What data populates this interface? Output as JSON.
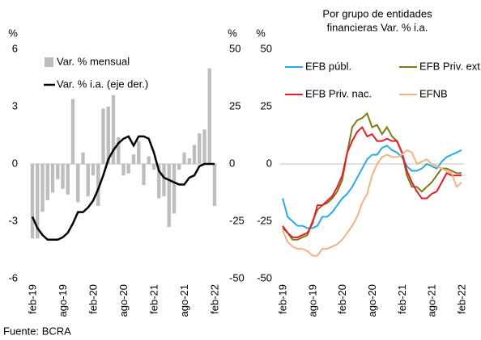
{
  "chart_data": [
    {
      "type": "combo",
      "categories": [
        "feb-19",
        null,
        null,
        null,
        null,
        null,
        "ago-19",
        null,
        null,
        null,
        null,
        null,
        "feb-20",
        null,
        null,
        null,
        null,
        null,
        "ago-20",
        null,
        null,
        null,
        null,
        null,
        "feb-21",
        null,
        null,
        null,
        null,
        null,
        "ago-21",
        null,
        null,
        null,
        null,
        null,
        "feb-22"
      ],
      "y_unit": "%",
      "y2_unit": "%",
      "ylim": [
        -6,
        6
      ],
      "yticks": [
        -6,
        -3,
        0,
        3,
        6
      ],
      "y2lim": [
        -50,
        50
      ],
      "y2ticks": [
        -50,
        -25,
        0,
        25,
        50
      ],
      "legend": "top-left",
      "series": [
        {
          "name": "Var. % mensual",
          "type": "bar",
          "color": "#bdbdbd",
          "values": [
            -3.9,
            -3.9,
            -2.5,
            -1.9,
            -1.5,
            -0.8,
            -1.3,
            -1.6,
            3.4,
            -2.0,
            0.6,
            -1.7,
            -0.6,
            -2.2,
            2.9,
            3.0,
            3.6,
            1.4,
            -0.6,
            -0.5,
            0.5,
            1.2,
            -1.1,
            0.4,
            -0.3,
            -1.8,
            -1.7,
            -3.3,
            -2.6,
            -0.3,
            0.6,
            0.3,
            1.0,
            1.6,
            1.8,
            5.0,
            -2.2
          ]
        },
        {
          "name": "Var. % i.a. (eje der.)",
          "type": "line",
          "axis": "y2",
          "color": "#000000",
          "values": [
            -23,
            -28,
            -31,
            -33,
            -33,
            -33,
            -32,
            -30,
            -26,
            -21,
            -21,
            -19,
            -16,
            -11,
            -5,
            2,
            6,
            9,
            11,
            12,
            8,
            12,
            12,
            11,
            5,
            -3,
            -6,
            -7,
            -8,
            -9,
            -9,
            -6,
            -5,
            -1,
            0,
            0,
            0
          ]
        }
      ]
    },
    {
      "type": "line",
      "title_lines": [
        "Por grupo de entidades",
        "financieras Var. % i.a."
      ],
      "categories": [
        "feb-19",
        null,
        null,
        null,
        null,
        null,
        "ago-19",
        null,
        null,
        null,
        null,
        null,
        "feb-20",
        null,
        null,
        null,
        null,
        null,
        "ago-20",
        null,
        null,
        null,
        null,
        null,
        "feb-21",
        null,
        null,
        null,
        null,
        null,
        "ago-21",
        null,
        null,
        null,
        null,
        null,
        "feb-22"
      ],
      "y_unit": "%",
      "ylim": [
        -50,
        50
      ],
      "yticks": [
        -50,
        -25,
        0,
        25,
        50
      ],
      "legend": "top",
      "series": [
        {
          "name": "EFB públ.",
          "color": "#29abe2",
          "values": [
            -15,
            -23,
            -25,
            -27,
            -27,
            -28,
            -28,
            -27,
            -23,
            -23,
            -21,
            -18,
            -15,
            -13,
            -10,
            -6,
            -2,
            2,
            4,
            4,
            7,
            8,
            6,
            5,
            3,
            -1,
            -3,
            -3,
            -2,
            0,
            -1,
            -2,
            1,
            3,
            4,
            5,
            6
          ]
        },
        {
          "name": "EFB Priv. ext.",
          "color": "#7a7a1a",
          "values": [
            -28,
            -30,
            -33,
            -33,
            -32,
            -31,
            -25,
            -20,
            -18,
            -17,
            -15,
            -12,
            -7,
            5,
            16,
            19,
            20,
            22,
            16,
            17,
            13,
            16,
            12,
            10,
            5,
            -5,
            -10,
            -10,
            -12,
            -10,
            -8,
            -5,
            -2,
            -2,
            -3,
            -4,
            -4
          ]
        },
        {
          "name": "EFB Priv. nac.",
          "color": "#e41e26",
          "values": [
            -27,
            -30,
            -32,
            -32,
            -31,
            -30,
            -26,
            -18,
            -18,
            -16,
            -14,
            -10,
            -5,
            5,
            10,
            14,
            16,
            12,
            13,
            10,
            10,
            11,
            10,
            10,
            5,
            -3,
            -8,
            -12,
            -15,
            -15,
            -13,
            -12,
            -8,
            -4,
            -5,
            -5,
            -5
          ]
        },
        {
          "name": "EFNB",
          "color": "#f4b183",
          "values": [
            -29,
            -34,
            -36,
            -37,
            -37,
            -38,
            -40,
            -40,
            -37,
            -37,
            -36,
            -35,
            -33,
            -30,
            -27,
            -23,
            -17,
            -13,
            -5,
            0,
            3,
            4,
            3,
            3,
            4,
            6,
            5,
            0,
            1,
            2,
            0,
            -1,
            -2,
            -3,
            -4,
            -10,
            -8
          ]
        }
      ]
    }
  ],
  "source": "Fuente: BCRA"
}
